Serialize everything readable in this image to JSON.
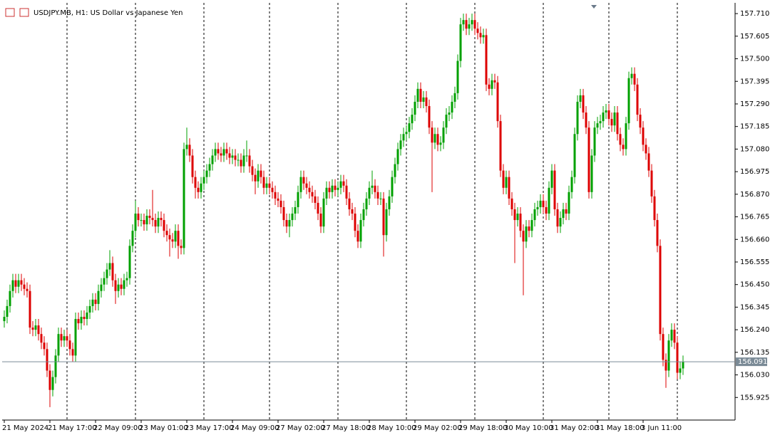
{
  "chart_data": {
    "type": "candlestick",
    "title": "USDJPY.MB, H1:  US Dollar vs Japanese Yen",
    "up_color": "#00a000",
    "down_color": "#dd0000",
    "grid": true,
    "current_price": 156.091,
    "current_price_color": "#7a8a96",
    "ylim": [
      155.82,
      157.76
    ],
    "yticks": [
      {
        "value": 157.71,
        "label": "157.710"
      },
      157.605,
      {
        "value": 157.5,
        "label": "157.500"
      },
      157.395,
      {
        "value": 157.29,
        "label": "157.290"
      },
      157.185,
      {
        "value": 157.08,
        "label": "157.080"
      },
      156.975,
      {
        "value": 156.87,
        "label": "156.870"
      },
      156.765,
      {
        "value": 156.66,
        "label": "156.660"
      },
      156.555,
      {
        "value": 156.45,
        "label": "156.450"
      },
      156.345,
      {
        "value": 156.24,
        "label": "156.240"
      },
      156.135,
      {
        "value": 156.03,
        "label": "156.030"
      },
      155.925
    ],
    "categories": [
      "21 May 2024",
      null,
      null,
      null,
      null,
      null,
      null,
      null,
      null,
      null,
      null,
      null,
      null,
      null,
      null,
      null,
      "21 May 17:00",
      null,
      null,
      null,
      null,
      null,
      null,
      null,
      null,
      null,
      null,
      null,
      null,
      null,
      null,
      null,
      "22 May 09:00",
      null,
      null,
      null,
      null,
      null,
      null,
      null,
      null,
      null,
      null,
      null,
      null,
      null,
      null,
      null,
      "23 May 01:00",
      null,
      null,
      null,
      null,
      null,
      null,
      null,
      null,
      null,
      null,
      null,
      null,
      null,
      null,
      null,
      "23 May 17:00",
      null,
      null,
      null,
      null,
      null,
      null,
      null,
      null,
      null,
      null,
      null,
      null,
      null,
      null,
      null,
      "24 May 09:00",
      null,
      null,
      null,
      null,
      null,
      null,
      null,
      null,
      null,
      null,
      null,
      null,
      null,
      null,
      null,
      "27 May 02:00",
      null,
      null,
      null,
      null,
      null,
      null,
      null,
      null,
      null,
      null,
      null,
      null,
      null,
      null,
      null,
      "27 May 18:00",
      null,
      null,
      null,
      null,
      null,
      null,
      null,
      null,
      null,
      null,
      null,
      null,
      null,
      null,
      null,
      "28 May 10:00",
      null,
      null,
      null,
      null,
      null,
      null,
      null,
      null,
      null,
      null,
      null,
      null,
      null,
      null,
      null,
      "29 May 02:00",
      null,
      null,
      null,
      null,
      null,
      null,
      null,
      null,
      null,
      null,
      null,
      null,
      null,
      null,
      null,
      "29 May 18:00",
      null,
      null,
      null,
      null,
      null,
      null,
      null,
      null,
      null,
      null,
      null,
      null,
      null,
      null,
      null,
      "30 May 10:00",
      null,
      null,
      null,
      null,
      null,
      null,
      null,
      null,
      null,
      null,
      null,
      null,
      null,
      null,
      null,
      "31 May 02:00",
      null,
      null,
      null,
      null,
      null,
      null,
      null,
      null,
      null,
      null,
      null,
      null,
      null,
      null,
      null,
      "31 May 18:00",
      null,
      null,
      null,
      null,
      null,
      null,
      null,
      null,
      null,
      null,
      null,
      null,
      null,
      null,
      null,
      "3 Jun 11:00",
      null,
      null,
      null,
      null,
      null,
      null,
      null,
      null,
      null,
      null,
      null,
      null,
      null,
      null
    ],
    "open": [
      156.28,
      156.3,
      156.35,
      156.42,
      156.47,
      156.44,
      156.47,
      156.45,
      156.43,
      156.42,
      156.25,
      156.24,
      156.26,
      156.22,
      156.18,
      156.15,
      156.05,
      155.96,
      156.02,
      156.12,
      156.22,
      156.19,
      156.21,
      156.19,
      156.15,
      156.12,
      156.29,
      156.27,
      156.3,
      156.29,
      156.32,
      156.35,
      156.38,
      156.36,
      156.42,
      156.45,
      156.48,
      156.52,
      156.55,
      156.47,
      156.42,
      156.45,
      156.43,
      156.47,
      156.48,
      156.63,
      156.7,
      156.78,
      156.75,
      156.75,
      156.73,
      156.77,
      156.76,
      156.75,
      156.72,
      156.76,
      156.75,
      156.7,
      156.68,
      156.66,
      156.65,
      156.7,
      156.63,
      156.62,
      157.08,
      157.1,
      157.05,
      156.95,
      156.9,
      156.88,
      156.92,
      156.95,
      156.98,
      157.01,
      157.05,
      157.08,
      157.06,
      157.05,
      157.08,
      157.06,
      157.04,
      157.05,
      157.03,
      157.03,
      157.0,
      157.05,
      157.05,
      157.0,
      156.96,
      156.93,
      156.98,
      156.95,
      156.9,
      156.92,
      156.9,
      156.88,
      156.85,
      156.84,
      156.81,
      156.75,
      156.72,
      156.75,
      156.78,
      156.81,
      156.88,
      156.95,
      156.92,
      156.9,
      156.88,
      156.86,
      156.83,
      156.78,
      156.72,
      156.85,
      156.9,
      156.88,
      156.91,
      156.89,
      156.9,
      156.93,
      156.91,
      156.85,
      156.8,
      156.78,
      156.7,
      156.65,
      156.75,
      156.8,
      156.85,
      156.9,
      156.91,
      156.88,
      156.85,
      156.85,
      156.68,
      156.8,
      156.86,
      156.95,
      157.01,
      157.08,
      157.12,
      157.15,
      157.16,
      157.2,
      157.24,
      157.3,
      157.36,
      157.3,
      157.32,
      157.28,
      157.18,
      157.11,
      157.15,
      157.1,
      157.11,
      157.18,
      157.24,
      157.25,
      157.3,
      157.34,
      157.49,
      157.66,
      157.68,
      157.64,
      157.66,
      157.68,
      157.64,
      157.62,
      157.6,
      157.61,
      157.38,
      157.36,
      157.4,
      157.39,
      157.21,
      156.98,
      156.9,
      156.95,
      156.85,
      156.8,
      156.75,
      156.78,
      156.7,
      156.65,
      156.72,
      156.7,
      156.75,
      156.8,
      156.81,
      156.84,
      156.81,
      156.78,
      156.9,
      156.98,
      156.8,
      156.72,
      156.76,
      156.8,
      156.78,
      156.88,
      156.95,
      157.15,
      157.3,
      157.33,
      157.25,
      157.18,
      156.88,
      157.05,
      157.18,
      157.2,
      157.21,
      157.25,
      157.26,
      157.22,
      157.19,
      157.25,
      157.15,
      157.1,
      157.08,
      157.2,
      157.41,
      157.43,
      157.38,
      157.24,
      157.18,
      157.1,
      157.06,
      156.98,
      156.86,
      156.75,
      156.63,
      156.22,
      156.1,
      156.05,
      156.19,
      156.24,
      156.18,
      156.04,
      156.06
    ],
    "high": [
      156.33,
      156.38,
      156.45,
      156.5,
      156.5,
      156.5,
      156.5,
      156.48,
      156.46,
      156.45,
      156.28,
      156.29,
      156.29,
      156.25,
      156.21,
      156.18,
      156.08,
      156.05,
      156.15,
      156.25,
      156.25,
      156.24,
      156.24,
      156.22,
      156.18,
      156.32,
      156.32,
      156.33,
      156.33,
      156.35,
      156.38,
      156.41,
      156.41,
      156.45,
      156.48,
      156.51,
      156.55,
      156.61,
      156.58,
      156.5,
      156.48,
      156.48,
      156.5,
      156.51,
      156.66,
      156.73,
      156.84,
      156.81,
      156.78,
      156.78,
      156.8,
      156.8,
      156.89,
      156.78,
      156.79,
      156.79,
      156.78,
      156.73,
      156.71,
      156.69,
      156.73,
      156.73,
      156.66,
      157.11,
      157.18,
      157.13,
      157.08,
      156.98,
      156.93,
      156.95,
      156.98,
      157.01,
      157.04,
      157.08,
      157.11,
      157.11,
      157.09,
      157.11,
      157.11,
      157.09,
      157.08,
      157.08,
      157.06,
      157.06,
      157.08,
      157.12,
      157.08,
      157.03,
      156.99,
      157.01,
      157.01,
      156.98,
      156.95,
      156.95,
      156.93,
      156.91,
      156.88,
      156.87,
      156.84,
      156.78,
      156.78,
      156.81,
      156.84,
      156.91,
      156.98,
      156.98,
      156.95,
      156.93,
      156.91,
      156.89,
      156.86,
      156.81,
      156.88,
      156.93,
      156.93,
      156.94,
      156.94,
      156.93,
      156.96,
      156.96,
      156.94,
      156.88,
      156.83,
      156.81,
      156.73,
      156.78,
      156.83,
      156.88,
      156.93,
      156.98,
      156.94,
      156.91,
      156.88,
      156.88,
      156.83,
      156.89,
      156.98,
      157.04,
      157.11,
      157.15,
      157.18,
      157.19,
      157.23,
      157.27,
      157.33,
      157.39,
      157.39,
      157.35,
      157.35,
      157.31,
      157.21,
      157.18,
      157.18,
      157.14,
      157.21,
      157.27,
      157.28,
      157.33,
      157.37,
      157.52,
      157.69,
      157.71,
      157.71,
      157.69,
      157.71,
      157.71,
      157.67,
      157.65,
      157.64,
      157.64,
      157.41,
      157.43,
      157.43,
      157.42,
      157.24,
      157.01,
      156.98,
      156.98,
      156.88,
      156.83,
      156.81,
      156.81,
      156.73,
      156.75,
      156.75,
      156.78,
      156.83,
      156.84,
      156.87,
      156.87,
      156.84,
      156.93,
      157.01,
      157.01,
      156.83,
      156.79,
      156.83,
      156.83,
      156.91,
      156.98,
      157.18,
      157.33,
      157.36,
      157.36,
      157.28,
      157.21,
      157.08,
      157.21,
      157.23,
      157.24,
      157.28,
      157.29,
      157.29,
      157.25,
      157.28,
      157.28,
      157.18,
      157.13,
      157.23,
      157.44,
      157.46,
      157.46,
      157.41,
      157.27,
      157.21,
      157.13,
      157.09,
      157.01,
      156.89,
      156.78,
      156.66,
      156.25,
      156.13,
      156.22,
      156.27,
      156.27,
      156.21,
      156.09,
      156.12
    ],
    "low": [
      156.25,
      156.27,
      156.32,
      156.39,
      156.41,
      156.41,
      156.42,
      156.4,
      156.39,
      156.22,
      156.21,
      156.21,
      156.19,
      156.15,
      156.12,
      156.02,
      155.88,
      155.93,
      155.99,
      156.09,
      156.16,
      156.16,
      156.16,
      156.12,
      156.09,
      156.09,
      156.24,
      156.24,
      156.26,
      156.26,
      156.29,
      156.32,
      156.33,
      156.33,
      156.39,
      156.42,
      156.45,
      156.49,
      156.44,
      156.36,
      156.39,
      156.4,
      156.4,
      156.44,
      156.45,
      156.6,
      156.67,
      156.72,
      156.72,
      156.7,
      156.7,
      156.73,
      156.72,
      156.69,
      156.69,
      156.72,
      156.67,
      156.65,
      156.58,
      156.62,
      156.62,
      156.57,
      156.59,
      156.59,
      157.05,
      157.02,
      156.92,
      156.85,
      156.85,
      156.85,
      156.89,
      156.92,
      156.95,
      156.98,
      157.02,
      157.03,
      157.02,
      157.02,
      157.03,
      157.01,
      157.01,
      157.0,
      157.0,
      156.97,
      156.97,
      157.02,
      156.97,
      156.93,
      156.87,
      156.9,
      156.92,
      156.87,
      156.87,
      156.87,
      156.85,
      156.82,
      156.81,
      156.78,
      156.72,
      156.69,
      156.67,
      156.72,
      156.75,
      156.78,
      156.85,
      156.89,
      156.87,
      156.85,
      156.83,
      156.8,
      156.75,
      156.69,
      156.69,
      156.82,
      156.85,
      156.85,
      156.86,
      156.86,
      156.87,
      156.88,
      156.82,
      156.77,
      156.75,
      156.67,
      156.62,
      156.62,
      156.72,
      156.77,
      156.82,
      156.87,
      156.85,
      156.82,
      156.82,
      156.58,
      156.65,
      156.77,
      156.83,
      156.92,
      156.98,
      157.05,
      157.09,
      157.12,
      157.13,
      157.17,
      157.21,
      157.27,
      157.27,
      157.27,
      157.25,
      157.15,
      156.88,
      157.08,
      157.07,
      157.07,
      157.08,
      157.15,
      157.21,
      157.22,
      157.27,
      157.31,
      157.46,
      157.63,
      157.61,
      157.61,
      157.63,
      157.61,
      157.59,
      157.57,
      157.57,
      157.35,
      157.33,
      157.33,
      157.36,
      157.18,
      156.95,
      156.87,
      156.87,
      156.82,
      156.77,
      156.55,
      156.72,
      156.67,
      156.4,
      156.62,
      156.67,
      156.67,
      156.72,
      156.77,
      156.78,
      156.78,
      156.75,
      156.75,
      156.87,
      156.77,
      156.69,
      156.69,
      156.73,
      156.75,
      156.75,
      156.85,
      156.92,
      157.12,
      157.27,
      157.22,
      157.15,
      156.85,
      156.85,
      157.02,
      157.15,
      157.17,
      157.18,
      157.22,
      157.19,
      157.16,
      157.16,
      157.12,
      157.07,
      157.05,
      157.05,
      157.17,
      157.38,
      157.35,
      157.21,
      157.15,
      157.07,
      157.03,
      156.95,
      156.83,
      156.72,
      156.6,
      156.19,
      156.07,
      155.97,
      156.02,
      156.16,
      156.15,
      156.01,
      156.01,
      156.03
    ],
    "close": [
      156.3,
      156.35,
      156.42,
      156.47,
      156.44,
      156.47,
      156.45,
      156.43,
      156.42,
      156.25,
      156.24,
      156.26,
      156.22,
      156.18,
      156.15,
      156.05,
      155.96,
      156.02,
      156.12,
      156.22,
      156.19,
      156.21,
      156.19,
      156.15,
      156.12,
      156.29,
      156.27,
      156.3,
      156.29,
      156.32,
      156.35,
      156.38,
      156.36,
      156.42,
      156.45,
      156.48,
      156.52,
      156.55,
      156.47,
      156.42,
      156.45,
      156.43,
      156.47,
      156.48,
      156.63,
      156.7,
      156.78,
      156.75,
      156.75,
      156.73,
      156.77,
      156.76,
      156.75,
      156.72,
      156.76,
      156.75,
      156.7,
      156.68,
      156.66,
      156.65,
      156.7,
      156.63,
      156.62,
      157.08,
      157.1,
      157.05,
      156.95,
      156.9,
      156.88,
      156.92,
      156.95,
      156.98,
      157.01,
      157.05,
      157.08,
      157.06,
      157.05,
      157.08,
      157.06,
      157.04,
      157.05,
      157.03,
      157.03,
      157.0,
      157.05,
      157.05,
      157.0,
      156.96,
      156.93,
      156.98,
      156.95,
      156.9,
      156.92,
      156.9,
      156.88,
      156.85,
      156.84,
      156.81,
      156.75,
      156.72,
      156.75,
      156.78,
      156.81,
      156.88,
      156.95,
      156.92,
      156.9,
      156.88,
      156.86,
      156.83,
      156.78,
      156.72,
      156.85,
      156.9,
      156.88,
      156.91,
      156.89,
      156.9,
      156.93,
      156.91,
      156.85,
      156.8,
      156.78,
      156.7,
      156.65,
      156.75,
      156.8,
      156.85,
      156.9,
      156.91,
      156.88,
      156.85,
      156.85,
      156.68,
      156.8,
      156.86,
      156.95,
      157.01,
      157.08,
      157.12,
      157.15,
      157.16,
      157.2,
      157.24,
      157.3,
      157.36,
      157.3,
      157.32,
      157.28,
      157.18,
      157.11,
      157.15,
      157.1,
      157.11,
      157.18,
      157.24,
      157.25,
      157.3,
      157.34,
      157.49,
      157.66,
      157.68,
      157.64,
      157.66,
      157.68,
      157.64,
      157.62,
      157.6,
      157.61,
      157.38,
      157.36,
      157.4,
      157.39,
      157.21,
      156.98,
      156.9,
      156.95,
      156.85,
      156.8,
      156.75,
      156.78,
      156.7,
      156.65,
      156.72,
      156.7,
      156.75,
      156.8,
      156.81,
      156.84,
      156.81,
      156.78,
      156.9,
      156.98,
      156.8,
      156.72,
      156.76,
      156.8,
      156.78,
      156.88,
      156.95,
      157.15,
      157.3,
      157.33,
      157.25,
      157.18,
      156.88,
      157.05,
      157.18,
      157.2,
      157.21,
      157.25,
      157.26,
      157.22,
      157.19,
      157.25,
      157.15,
      157.1,
      157.08,
      157.2,
      157.41,
      157.43,
      157.38,
      157.24,
      157.18,
      157.1,
      157.06,
      156.98,
      156.86,
      156.75,
      156.63,
      156.22,
      156.1,
      156.05,
      156.19,
      156.24,
      156.18,
      156.04,
      156.06,
      156.09
    ]
  }
}
